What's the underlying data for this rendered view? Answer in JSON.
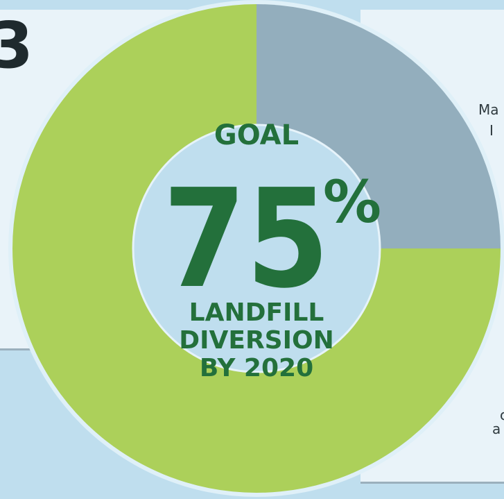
{
  "colors": {
    "background": "#bfdeee",
    "panel": "#e9f3f9",
    "donut_green": "#acd05a",
    "donut_gray": "#93aebd",
    "center_fill": "#bfdeee",
    "ring_outline": "#dff0f8",
    "text_green": "#23703b"
  },
  "clipped_text": {
    "left": "3",
    "right": [
      "Ma",
      "I",
      "c",
      "a"
    ]
  },
  "chart_data": {
    "type": "pie",
    "variant": "donut",
    "series": [
      {
        "label": "",
        "value": 75,
        "color": "#acd05a"
      },
      {
        "label": "",
        "value": 25,
        "color": "#93aebd"
      }
    ],
    "center": {
      "goal_label": "GOAL",
      "value": "75",
      "unit": "%",
      "caption_lines": [
        "LANDFILL",
        "DIVERSION",
        "BY 2020"
      ]
    }
  }
}
